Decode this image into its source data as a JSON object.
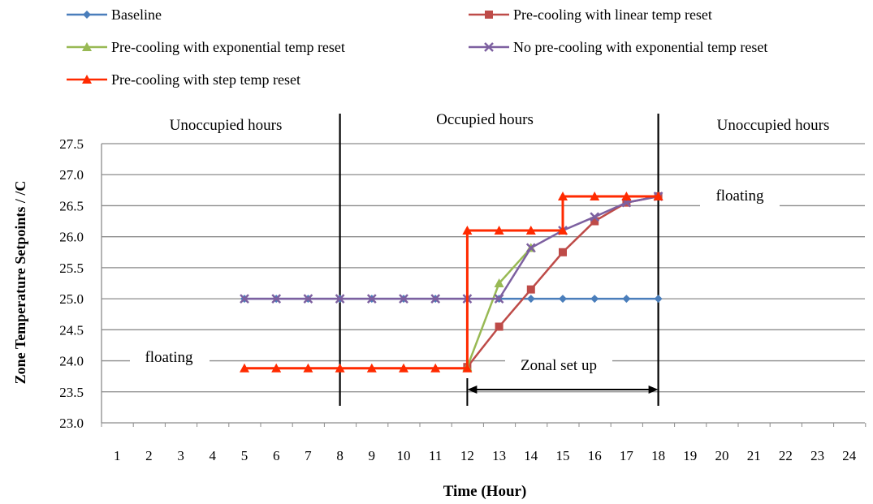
{
  "chart_data": {
    "type": "line",
    "xlabel": "Time (Hour)",
    "ylabel": "Zone Temperature Setpoints / /C",
    "categories": [
      1,
      2,
      3,
      4,
      5,
      6,
      7,
      8,
      9,
      10,
      11,
      12,
      13,
      14,
      15,
      16,
      17,
      18,
      19,
      20,
      21,
      22,
      23,
      24
    ],
    "ylim": [
      23.0,
      27.5
    ],
    "yticks": [
      "23.0",
      "23.5",
      "24.0",
      "24.5",
      "25.0",
      "25.5",
      "26.0",
      "26.5",
      "27.0",
      "27.5"
    ],
    "grid": true,
    "legend_position": "top",
    "series": [
      {
        "name": "Baseline",
        "color": "#4a7ebb",
        "marker": "diamond",
        "x": [
          5,
          6,
          7,
          8,
          9,
          10,
          11,
          12,
          13,
          14,
          15,
          16,
          17,
          18
        ],
        "y": [
          25.0,
          25.0,
          25.0,
          25.0,
          25.0,
          25.0,
          25.0,
          25.0,
          25.0,
          25.0,
          25.0,
          25.0,
          25.0,
          25.0
        ]
      },
      {
        "name": "Pre-cooling with linear temp reset",
        "color": "#be4b48",
        "marker": "square",
        "x": [
          12,
          13,
          14,
          15,
          16,
          17,
          18
        ],
        "y": [
          23.9,
          24.55,
          25.15,
          25.75,
          26.25,
          26.55,
          26.65
        ]
      },
      {
        "name": "Pre-cooling with exponential temp reset",
        "color": "#98b954",
        "marker": "triangle",
        "x": [
          12,
          13,
          14
        ],
        "y": [
          23.9,
          25.25,
          25.82
        ]
      },
      {
        "name": "No pre-cooling with exponential temp reset",
        "color": "#7d60a0",
        "marker": "x",
        "x": [
          5,
          6,
          7,
          8,
          9,
          10,
          11,
          12,
          13,
          14,
          15,
          16,
          17,
          18
        ],
        "y": [
          25.0,
          25.0,
          25.0,
          25.0,
          25.0,
          25.0,
          25.0,
          25.0,
          25.0,
          25.82,
          26.1,
          26.32,
          26.55,
          26.65
        ]
      },
      {
        "name": "Pre-cooling with step temp reset",
        "color": "#ff2a00",
        "marker": "triangle",
        "x": [
          5,
          6,
          7,
          8,
          9,
          10,
          11,
          12,
          12,
          13,
          14,
          15,
          15,
          16,
          17,
          18
        ],
        "y": [
          23.88,
          23.88,
          23.88,
          23.88,
          23.88,
          23.88,
          23.88,
          23.88,
          26.1,
          26.1,
          26.1,
          26.1,
          26.65,
          26.65,
          26.65,
          26.65
        ]
      }
    ],
    "annotations": {
      "unoccupied_left": "Unoccupied hours",
      "occupied": "Occupied hours",
      "unoccupied_right": "Unoccupied hours",
      "floating_right": "floating",
      "floating_left": "floating",
      "zonal_setup": "Zonal set up"
    },
    "vertical_lines_x": [
      8,
      18
    ],
    "arrow_range_x": [
      12,
      18
    ]
  }
}
